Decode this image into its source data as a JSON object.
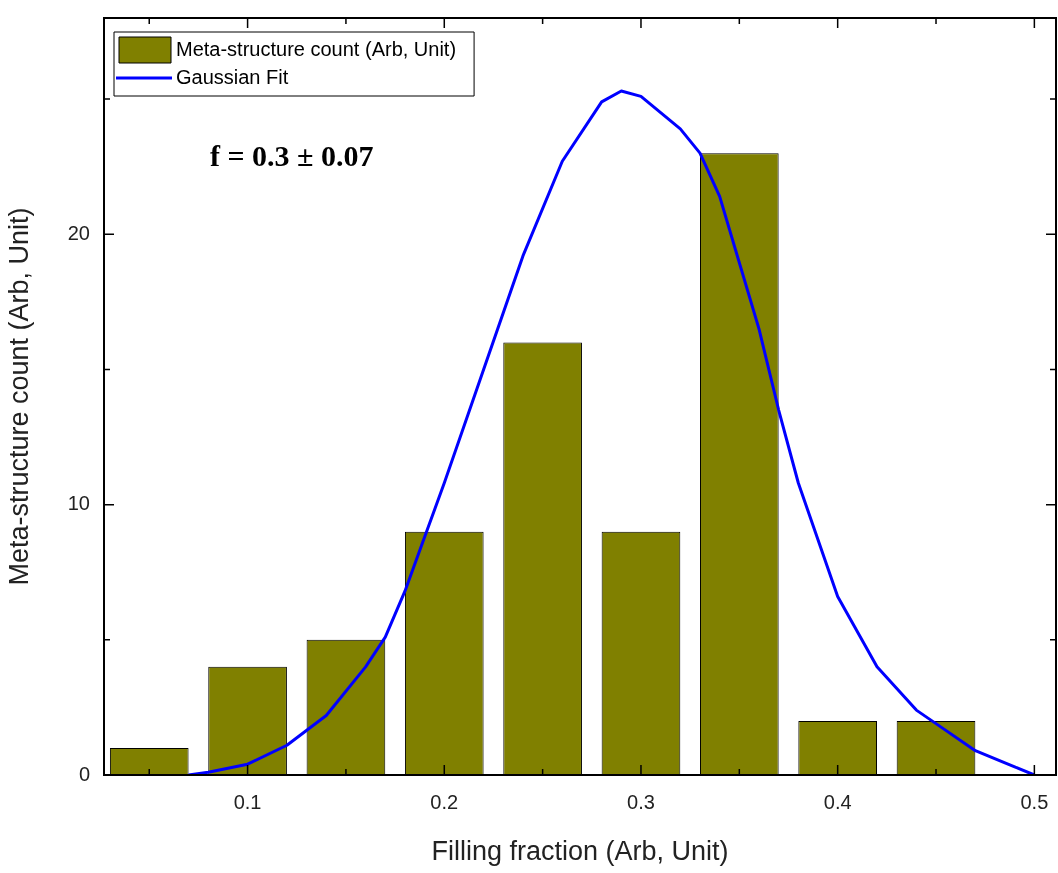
{
  "chart_data": {
    "type": "histogram",
    "xlabel": "Filling fraction (Arb, Unit)",
    "ylabel": "Meta-structure count (Arb, Unit)",
    "bins": [
      0.025,
      0.075,
      0.125,
      0.175,
      0.225,
      0.275,
      0.325,
      0.375,
      0.425,
      0.475
    ],
    "series": [
      {
        "name": "Meta-structure count (Arb, Unit)",
        "color": "#808000",
        "values": [
          1,
          4,
          5,
          9,
          16,
          9,
          23,
          2,
          2
        ]
      },
      {
        "name": "Gaussian Fit",
        "type": "line",
        "color": "#0000ff",
        "x": [
          0.07,
          0.08,
          0.1,
          0.12,
          0.14,
          0.16,
          0.17,
          0.18,
          0.19,
          0.2,
          0.22,
          0.24,
          0.26,
          0.28,
          0.29,
          0.3,
          0.32,
          0.33,
          0.34,
          0.36,
          0.37,
          0.38,
          0.4,
          0.42,
          0.44,
          0.45,
          0.47,
          0.49,
          0.5
        ],
        "values": [
          0,
          0.1,
          0.4,
          1.1,
          2.2,
          4,
          5.1,
          6.8,
          8.8,
          10.8,
          15,
          19.2,
          22.7,
          24.9,
          25.3,
          25.1,
          23.9,
          23,
          21.4,
          16.5,
          13.5,
          10.8,
          6.6,
          4,
          2.4,
          1.9,
          0.9,
          0.3,
          0
        ]
      }
    ],
    "xlim": [
      0.027,
      0.511
    ],
    "ylim": [
      0,
      28
    ],
    "xticks": [
      {
        "value": 0.05,
        "label": null
      },
      0.1,
      {
        "value": 0.15,
        "label": null
      },
      0.2,
      {
        "value": 0.25,
        "label": null
      },
      0.3,
      {
        "value": 0.35,
        "label": null
      },
      0.4,
      {
        "value": 0.45,
        "label": null
      },
      0.5
    ],
    "yticks": [
      0,
      {
        "value": 5,
        "label": null
      },
      10,
      {
        "value": 15,
        "label": null
      },
      20,
      {
        "value": 25,
        "label": null
      }
    ],
    "annotations": [
      "f = 0.3 ± 0.07"
    ],
    "legend": "top left",
    "grid": false,
    "marker": "none"
  }
}
